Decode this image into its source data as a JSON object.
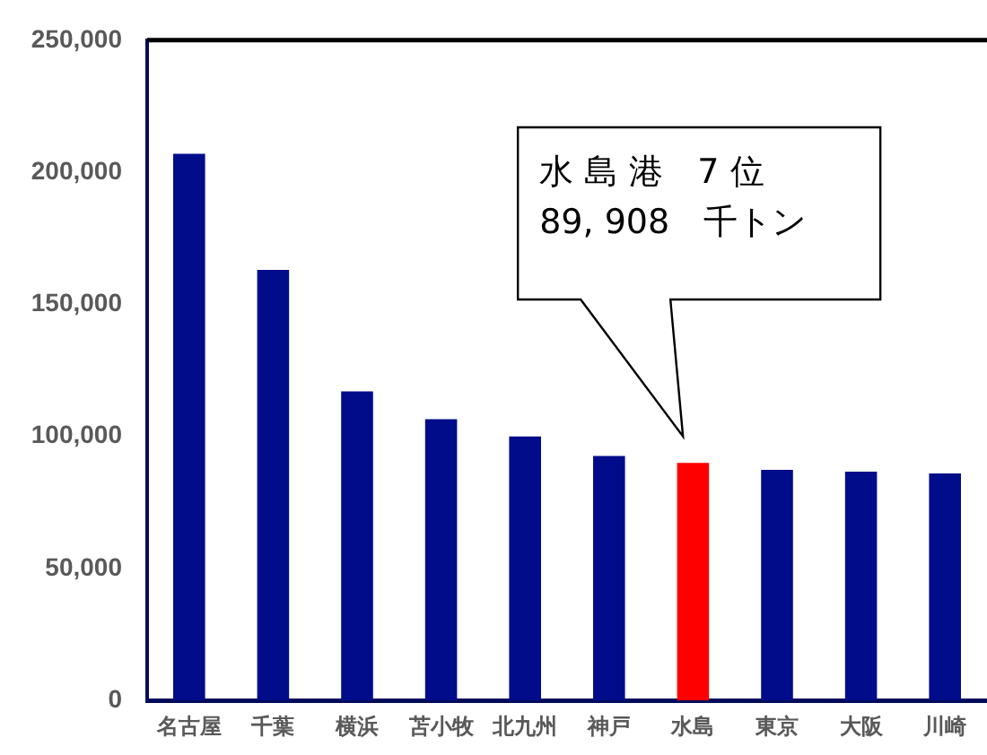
{
  "chart_data": {
    "type": "bar",
    "categories": [
      "名古屋",
      "千葉",
      "横浜",
      "苫小牧",
      "北九州",
      "神戸",
      "水島",
      "東京",
      "大阪",
      "川崎"
    ],
    "values": [
      207000,
      163000,
      117000,
      106500,
      100000,
      92600,
      89908,
      87300,
      86600,
      86000
    ],
    "colors": [
      "#000c8a",
      "#000c8a",
      "#000c8a",
      "#000c8a",
      "#000c8a",
      "#000c8a",
      "#ff0000",
      "#000c8a",
      "#000c8a",
      "#000c8a"
    ],
    "ylim": [
      0,
      250000
    ],
    "yticks": [
      0,
      {
        "value": 50000,
        "label": "50,000"
      },
      {
        "value": 100000,
        "label": "100,000"
      },
      {
        "value": 150000,
        "label": "150,000"
      },
      {
        "value": 200000,
        "label": "200,000"
      },
      {
        "value": 250000,
        "label": "250,000"
      }
    ],
    "grid": false,
    "legend": false,
    "annotations": [
      "水 島 港　7 位\n89, 908　千トン"
    ]
  }
}
